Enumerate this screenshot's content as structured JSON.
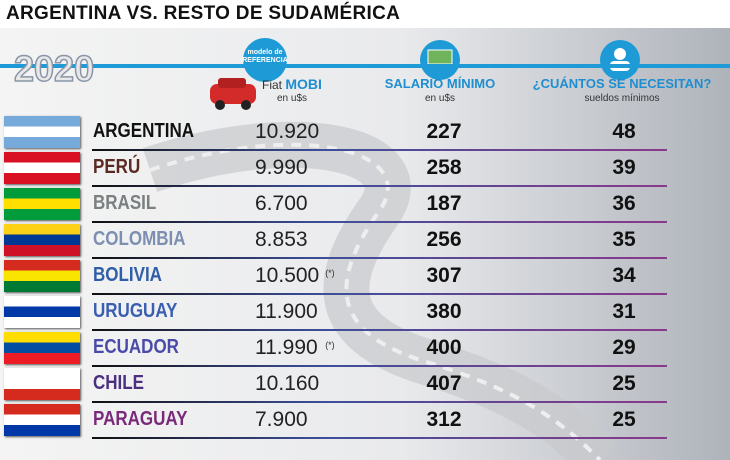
{
  "header": {
    "title": "ARGENTINA VS. RESTO DE SUDAMÉRICA",
    "year": "2020"
  },
  "columns": {
    "car": {
      "badge": [
        "modelo de",
        "REFERENCIA"
      ],
      "brand": "Fiat",
      "model": "MOBI",
      "unit": "en u$s"
    },
    "salary": {
      "title": "SALARIO MÍNIMO",
      "unit": "en u$s"
    },
    "needed": {
      "title": "¿CUÁNTOS SE NECESITAN?",
      "unit": "sueldos mínimos"
    }
  },
  "rows": [
    {
      "country": "ARGENTINA",
      "price": "10.920",
      "salary": "227",
      "needed": "48"
    },
    {
      "country": "PERÚ",
      "price": "9.990",
      "salary": "258",
      "needed": "39"
    },
    {
      "country": "BRASIL",
      "price": "6.700",
      "salary": "187",
      "needed": "36"
    },
    {
      "country": "COLOMBIA",
      "price": "8.853",
      "salary": "256",
      "needed": "35"
    },
    {
      "country": "BOLIVIA",
      "price": "10.500",
      "note": "(*)",
      "salary": "307",
      "needed": "34"
    },
    {
      "country": "URUGUAY",
      "price": "11.900",
      "salary": "380",
      "needed": "31"
    },
    {
      "country": "ECUADOR",
      "price": "11.990",
      "note": "(*)",
      "salary": "400",
      "needed": "29"
    },
    {
      "country": "CHILE",
      "price": "10.160",
      "salary": "407",
      "needed": "25"
    },
    {
      "country": "PARAGUAY",
      "price": "7.900",
      "salary": "312",
      "needed": "25"
    }
  ]
}
